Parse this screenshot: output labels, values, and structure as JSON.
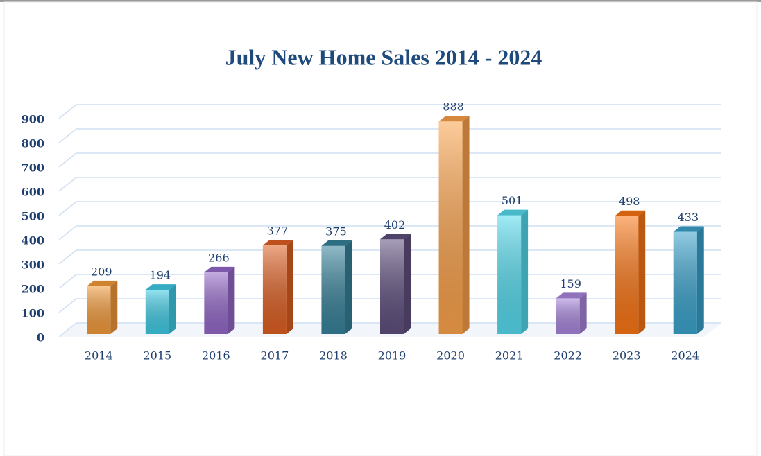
{
  "chart_data": {
    "type": "bar3d",
    "title": "July New Home Sales 2014 - 2024",
    "categories": [
      "2014",
      "2015",
      "2016",
      "2017",
      "2018",
      "2019",
      "2020",
      "2021",
      "2022",
      "2023",
      "2024"
    ],
    "values": [
      209,
      194,
      266,
      377,
      375,
      402,
      888,
      501,
      159,
      498,
      433
    ],
    "colors": [
      "#f39a3a",
      "#3fcbe4",
      "#9468c8",
      "#de5f22",
      "#37829a",
      "#5f4f7e",
      "#fba24a",
      "#55dbee",
      "#a886dc",
      "#fa7514",
      "#3aa2cc"
    ],
    "ylim": [
      0,
      900
    ],
    "yticks": [
      0,
      100,
      200,
      300,
      400,
      500,
      600,
      700,
      800,
      900
    ],
    "grid": true
  }
}
